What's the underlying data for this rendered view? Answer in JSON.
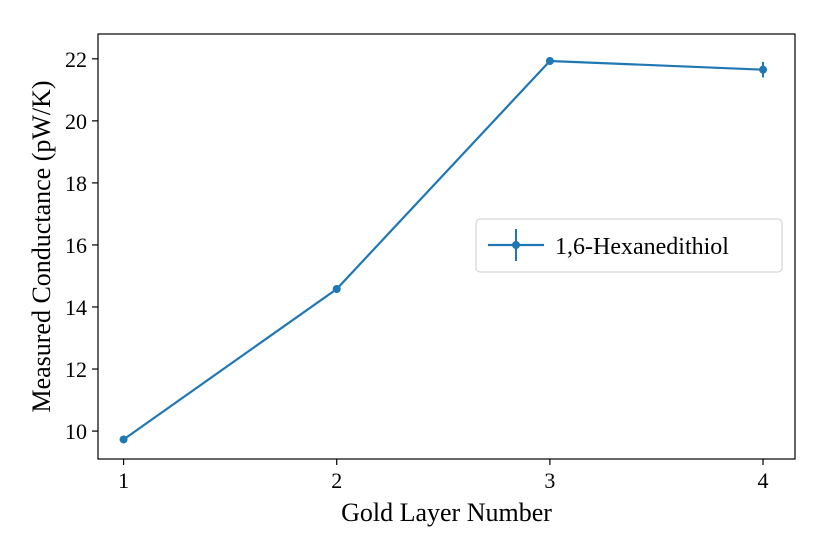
{
  "chart_data": {
    "type": "line",
    "title": "",
    "xlabel": "Gold Layer Number",
    "ylabel": "Measured Conductance (pW/K)",
    "xlim": [
      0.88,
      4.15
    ],
    "ylim": [
      9.1,
      22.8
    ],
    "x_ticks": [
      1,
      2,
      3,
      4
    ],
    "y_ticks": [
      10,
      12,
      14,
      16,
      18,
      20,
      22
    ],
    "grid": false,
    "legend_position": "center-right",
    "series": [
      {
        "name": "1,6-Hexanedithiol",
        "color": "#1f77b4",
        "marker": "circle",
        "x": [
          1,
          2,
          3,
          4
        ],
        "y": [
          9.73,
          14.58,
          21.93,
          21.65
        ],
        "yerr": [
          0.05,
          0.05,
          0.12,
          0.25
        ]
      }
    ]
  }
}
